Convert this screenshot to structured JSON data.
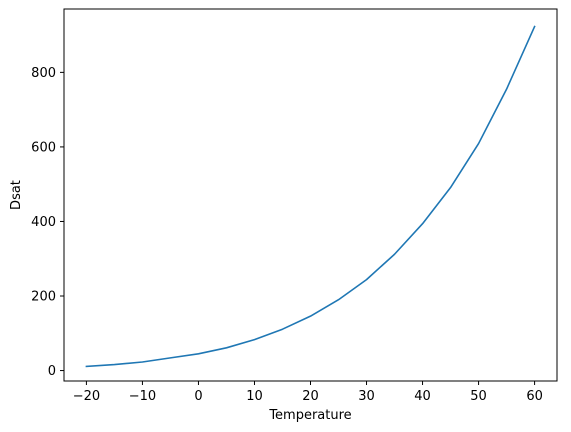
{
  "chart_data": {
    "type": "line",
    "title": "",
    "xlabel": "Temperature",
    "ylabel": "Dsat",
    "xlim": [
      -24,
      64
    ],
    "ylim": [
      -28,
      970
    ],
    "x_ticks": [
      -20,
      -10,
      0,
      10,
      20,
      30,
      40,
      50,
      60
    ],
    "x_tick_labels": [
      "−20",
      "−10",
      "0",
      "10",
      "20",
      "30",
      "40",
      "50",
      "60"
    ],
    "y_ticks": [
      0,
      200,
      400,
      600,
      800
    ],
    "y_tick_labels": [
      "0",
      "200",
      "400",
      "600",
      "800"
    ],
    "grid": false,
    "legend": "none",
    "series": [
      {
        "color": "#1f77b4",
        "x": [
          -20,
          -15,
          -10,
          -5,
          0,
          5,
          10,
          15,
          20,
          25,
          30,
          35,
          40,
          45,
          50,
          55,
          60
        ],
        "y": [
          11,
          16,
          23,
          34,
          45,
          61,
          83,
          111,
          146,
          190,
          244,
          312,
          394,
          491,
          609,
          755,
          923
        ]
      }
    ]
  }
}
